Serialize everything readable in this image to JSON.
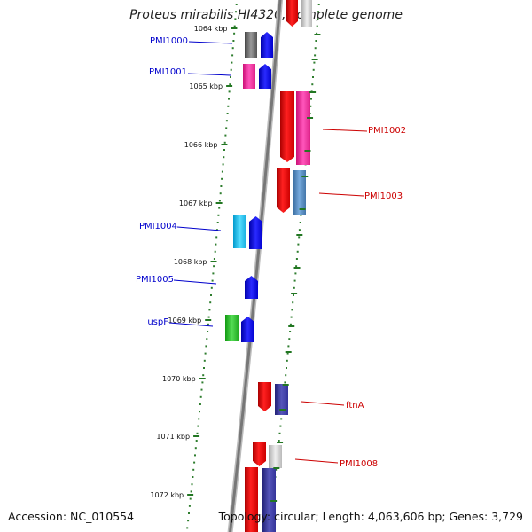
{
  "title": "Proteus mirabilis HI4320, complete genome",
  "footer": {
    "accession": "Accession: NC_010554",
    "summary": "Topology: circular; Length: 4,063,606 bp; Genes: 3,729"
  },
  "ticks": [
    "1064 kbp",
    "1065 kbp",
    "1066 kbp",
    "1067 kbp",
    "1068 kbp",
    "1069 kbp",
    "1070 kbp",
    "1071 kbp",
    "1072 kbp"
  ],
  "genes": [
    {
      "label": "PMI1000",
      "strand": "reverse",
      "color": "#0000cc"
    },
    {
      "label": "PMI1001",
      "strand": "reverse",
      "color": "#0000cc"
    },
    {
      "label": "PMI1002",
      "strand": "forward",
      "color": "#cc0000"
    },
    {
      "label": "PMI1003",
      "strand": "forward",
      "color": "#cc0000"
    },
    {
      "label": "PMI1004",
      "strand": "reverse",
      "color": "#0000cc"
    },
    {
      "label": "PMI1005",
      "strand": "reverse",
      "color": "#0000cc"
    },
    {
      "label": "uspF",
      "strand": "reverse",
      "color": "#0000cc"
    },
    {
      "label": "ftnA",
      "strand": "forward",
      "color": "#cc0000"
    },
    {
      "label": "PMI1008",
      "strand": "forward",
      "color": "#cc0000"
    }
  ],
  "colors": {
    "backbone": "#777777",
    "dots": "#2e7d2e",
    "reverse_strand": "#0000ee",
    "forward_strand": "#ee0000",
    "pink": "#ff3399",
    "cyan": "#22ccff",
    "green": "#22bb22",
    "gray": "#666666",
    "purple": "#333399"
  }
}
